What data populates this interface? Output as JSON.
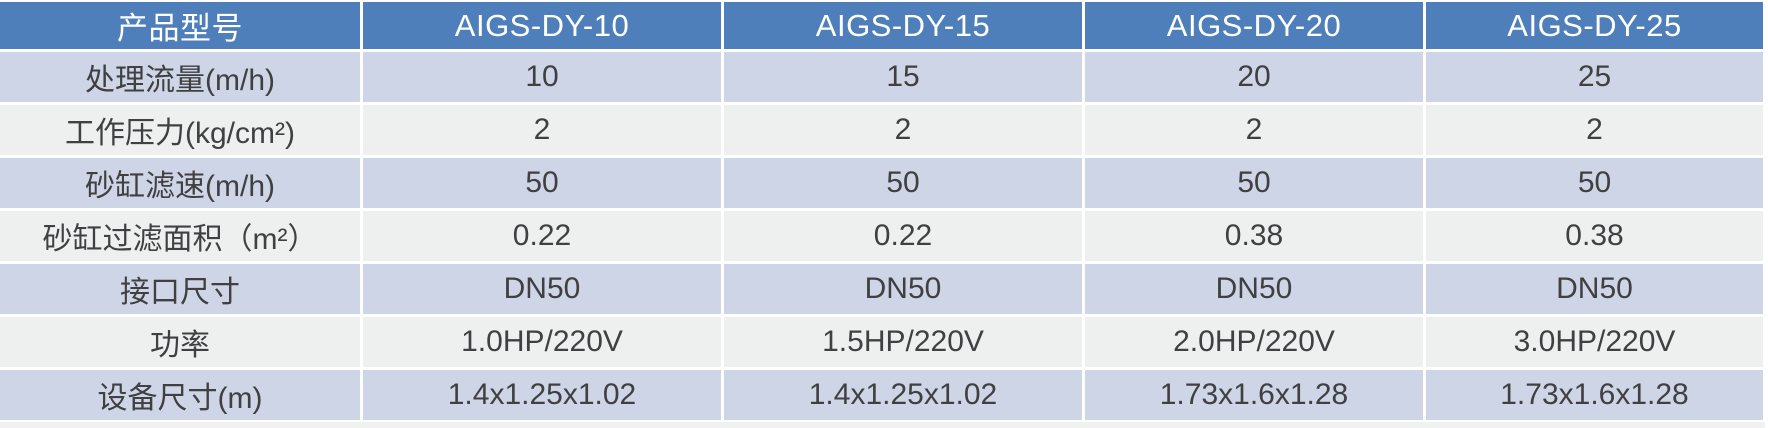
{
  "colors": {
    "header_bg": "#4e7fba",
    "header_text": "#ffffff",
    "row_blue_bg": "#cdd5e6",
    "row_gray_bg": "#eef0f0",
    "body_text": "#404042",
    "gap": "#ffffff",
    "bottom_strip": "#f0f2f2"
  },
  "table": {
    "header": {
      "label": "产品型号",
      "models": [
        "AIGS-DY-10",
        "AIGS-DY-15",
        "AIGS-DY-20",
        "AIGS-DY-25"
      ]
    },
    "rows": [
      {
        "label": "处理流量(m/h)",
        "values": [
          "10",
          "15",
          "20",
          "25"
        ]
      },
      {
        "label": "工作压力(kg/cm²)",
        "values": [
          "2",
          "2",
          "2",
          "2"
        ]
      },
      {
        "label": "砂缸滤速(m/h)",
        "values": [
          "50",
          "50",
          "50",
          "50"
        ]
      },
      {
        "label": "砂缸过滤面积（m²）",
        "values": [
          "0.22",
          "0.22",
          "0.38",
          "0.38"
        ]
      },
      {
        "label": "接口尺寸",
        "values": [
          "DN50",
          "DN50",
          "DN50",
          "DN50"
        ]
      },
      {
        "label": "功率",
        "values": [
          "1.0HP/220V",
          "1.5HP/220V",
          "2.0HP/220V",
          "3.0HP/220V"
        ]
      },
      {
        "label": "设备尺寸(m)",
        "values": [
          "1.4x1.25x1.02",
          "1.4x1.25x1.02",
          "1.73x1.6x1.28",
          "1.73x1.6x1.28"
        ]
      }
    ]
  }
}
